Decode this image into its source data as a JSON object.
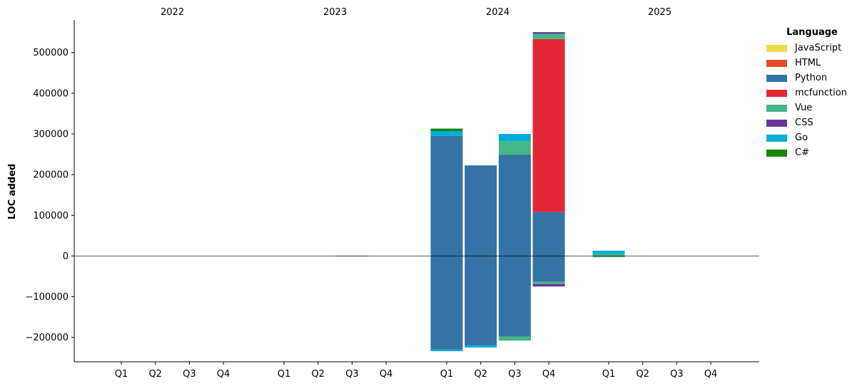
{
  "chart_data": {
    "type": "bar",
    "stacked": true,
    "ylabel": "LOC added",
    "ylim": [
      -260000,
      580000
    ],
    "yticks": [
      -200000,
      -100000,
      0,
      100000,
      200000,
      300000,
      400000,
      500000
    ],
    "ytick_labels": [
      "−200000",
      "−100000",
      "0",
      "100000",
      "200000",
      "300000",
      "400000",
      "500000"
    ],
    "groups": [
      {
        "year": "2022",
        "quarters": [
          "Q1",
          "Q2",
          "Q3",
          "Q4"
        ]
      },
      {
        "year": "2023",
        "quarters": [
          "Q1",
          "Q2",
          "Q3",
          "Q4"
        ]
      },
      {
        "year": "2024",
        "quarters": [
          "Q1",
          "Q2",
          "Q3",
          "Q4"
        ]
      },
      {
        "year": "2025",
        "quarters": [
          "Q1",
          "Q2",
          "Q3",
          "Q4"
        ]
      }
    ],
    "categories": [
      "2022 Q1",
      "2022 Q2",
      "2022 Q3",
      "2022 Q4",
      "2023 Q1",
      "2023 Q2",
      "2023 Q3",
      "2023 Q4",
      "2024 Q1",
      "2024 Q2",
      "2024 Q3",
      "2024 Q4",
      "2025 Q1",
      "2025 Q2",
      "2025 Q3",
      "2025 Q4"
    ],
    "legend_title": "Language",
    "legend_position": "upper-right outside",
    "grid": false,
    "zero_line": true,
    "series": [
      {
        "name": "JavaScript",
        "color": "#f0db4f",
        "positive": [
          0,
          0,
          0,
          0,
          0,
          0,
          0,
          0,
          0,
          0,
          0,
          0,
          0,
          0,
          0,
          0
        ],
        "negative": [
          0,
          0,
          0,
          0,
          0,
          0,
          0,
          0,
          0,
          0,
          0,
          0,
          0,
          0,
          0,
          0
        ]
      },
      {
        "name": "HTML",
        "color": "#e34c26",
        "positive": [
          0,
          0,
          0,
          0,
          0,
          0,
          500,
          0,
          0,
          0,
          0,
          0,
          0,
          0,
          0,
          0
        ],
        "negative": [
          0,
          0,
          0,
          0,
          0,
          0,
          0,
          0,
          0,
          0,
          0,
          0,
          0,
          0,
          0,
          0
        ]
      },
      {
        "name": "Python",
        "color": "#3572a5",
        "positive": [
          0,
          0,
          0,
          0,
          0,
          0,
          0,
          0,
          295000,
          222000,
          249000,
          108000,
          0,
          0,
          0,
          0
        ],
        "negative": [
          0,
          0,
          0,
          0,
          0,
          0,
          0,
          0,
          -230000,
          -220000,
          -198000,
          -63000,
          0,
          0,
          0,
          0
        ]
      },
      {
        "name": "mcfunction",
        "color": "#e22837",
        "positive": [
          0,
          0,
          0,
          0,
          0,
          0,
          0,
          0,
          0,
          0,
          0,
          425000,
          0,
          0,
          0,
          0
        ],
        "negative": [
          0,
          0,
          0,
          0,
          0,
          0,
          0,
          0,
          0,
          0,
          0,
          0,
          0,
          0,
          0,
          0
        ]
      },
      {
        "name": "Vue",
        "color": "#41b883",
        "positive": [
          0,
          0,
          0,
          0,
          0,
          0,
          0,
          0,
          0,
          1000,
          33000,
          13000,
          5000,
          0,
          0,
          0
        ],
        "negative": [
          0,
          0,
          0,
          0,
          0,
          0,
          0,
          0,
          0,
          0,
          -10000,
          -6000,
          -3000,
          0,
          0,
          0
        ]
      },
      {
        "name": "CSS",
        "color": "#663399",
        "positive": [
          0,
          0,
          0,
          0,
          0,
          0,
          0,
          0,
          0,
          0,
          0,
          4000,
          0,
          0,
          0,
          0
        ],
        "negative": [
          0,
          0,
          0,
          0,
          0,
          0,
          0,
          0,
          0,
          0,
          0,
          -6000,
          0,
          0,
          0,
          0
        ]
      },
      {
        "name": "Go",
        "color": "#00add8",
        "positive": [
          0,
          0,
          0,
          0,
          0,
          0,
          0,
          0,
          12000,
          0,
          18000,
          0,
          8000,
          0,
          0,
          0
        ],
        "negative": [
          0,
          0,
          0,
          0,
          0,
          0,
          0,
          0,
          -4000,
          -5000,
          0,
          0,
          0,
          0,
          0,
          0
        ]
      },
      {
        "name": "C#",
        "color": "#178600",
        "positive": [
          0,
          0,
          0,
          0,
          0,
          0,
          0,
          0,
          6000,
          0,
          0,
          0,
          0,
          0,
          0,
          0
        ],
        "negative": [
          0,
          0,
          0,
          0,
          0,
          0,
          0,
          0,
          0,
          0,
          0,
          0,
          0,
          0,
          0,
          0
        ]
      }
    ]
  }
}
